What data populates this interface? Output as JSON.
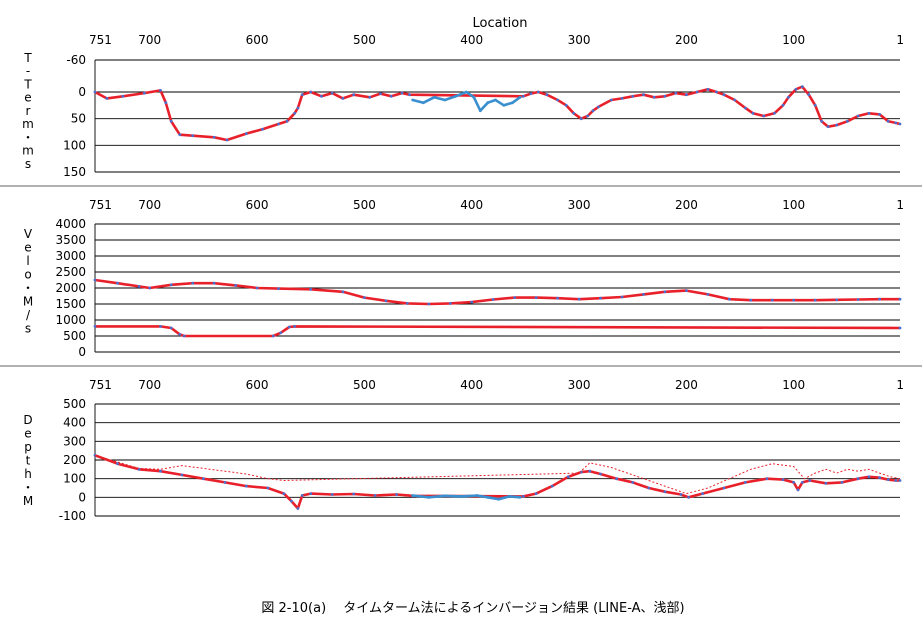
{
  "chart_data": [
    {
      "type": "line",
      "title": "Location",
      "ylabel": "T-Term・ms",
      "ylabel_chars": [
        "T",
        "-",
        "T",
        "e",
        "r",
        "m",
        "・",
        "m",
        "s"
      ],
      "x_ticks": [
        "751",
        "700",
        "600",
        "500",
        "400",
        "300",
        "200",
        "100",
        "1"
      ],
      "x_tick_values": [
        751,
        700,
        600,
        500,
        400,
        300,
        200,
        100,
        1
      ],
      "xlim": [
        751,
        1
      ],
      "y_ticks": [
        "-60",
        "0",
        "50",
        "100",
        "150"
      ],
      "y_tick_values": [
        -60,
        0,
        50,
        100,
        150
      ],
      "ylim": [
        -60,
        150
      ],
      "y_inverted": true,
      "grid": true,
      "series": [
        {
          "color": "#e8202a",
          "x": [
            751,
            740,
            725,
            705,
            690,
            685,
            680,
            672,
            660,
            640,
            628,
            610,
            595,
            580,
            572,
            565,
            562,
            558,
            550,
            540,
            530,
            520,
            510,
            495,
            485,
            475,
            465,
            458,
            352,
            345,
            338,
            330,
            320,
            312,
            305,
            298,
            292,
            287,
            282,
            270,
            260,
            250,
            240,
            230,
            220,
            210,
            200,
            190,
            180,
            172,
            165,
            155,
            145,
            138,
            128,
            118,
            110,
            105,
            98,
            92,
            86,
            80,
            74,
            68,
            60,
            50,
            40,
            30,
            20,
            12,
            5,
            1
          ],
          "y": [
            0,
            12,
            8,
            2,
            -3,
            20,
            55,
            80,
            82,
            85,
            90,
            78,
            70,
            60,
            55,
            40,
            30,
            5,
            0,
            8,
            2,
            12,
            5,
            10,
            3,
            8,
            2,
            5,
            8,
            3,
            0,
            5,
            15,
            25,
            40,
            50,
            45,
            35,
            28,
            15,
            12,
            8,
            5,
            10,
            8,
            2,
            5,
            0,
            -5,
            0,
            5,
            15,
            30,
            40,
            45,
            40,
            25,
            10,
            -5,
            -10,
            5,
            25,
            55,
            65,
            62,
            55,
            45,
            40,
            42,
            55,
            58,
            60
          ]
        },
        {
          "color": "#3a8fd0",
          "x": [
            455,
            445,
            435,
            425,
            415,
            405,
            398,
            392,
            385,
            378,
            370,
            362,
            355
          ],
          "y": [
            15,
            20,
            10,
            15,
            8,
            0,
            10,
            35,
            20,
            15,
            25,
            20,
            10
          ]
        }
      ]
    },
    {
      "type": "line",
      "ylabel": "Velo・M/s",
      "ylabel_chars": [
        "V",
        "e",
        "l",
        "o",
        "・",
        "M",
        "/",
        "s"
      ],
      "x_ticks": [
        "751",
        "700",
        "600",
        "500",
        "400",
        "300",
        "200",
        "100",
        "1"
      ],
      "x_tick_values": [
        751,
        700,
        600,
        500,
        400,
        300,
        200,
        100,
        1
      ],
      "xlim": [
        751,
        1
      ],
      "y_ticks": [
        "4000",
        "3500",
        "3000",
        "2500",
        "2000",
        "1500",
        "1000",
        "500",
        "0"
      ],
      "y_tick_values": [
        4000,
        3500,
        3000,
        2500,
        2000,
        1500,
        1000,
        500,
        0
      ],
      "ylim": [
        0,
        4000
      ],
      "grid": true,
      "series": [
        {
          "color": "#e8202a",
          "x": [
            751,
            730,
            710,
            700,
            680,
            660,
            640,
            620,
            600,
            580,
            550,
            520,
            500,
            480,
            460,
            440,
            420,
            400,
            380,
            360,
            340,
            320,
            300,
            280,
            260,
            240,
            220,
            200,
            180,
            160,
            140,
            120,
            100,
            80,
            60,
            40,
            20,
            1
          ],
          "y": [
            2250,
            2150,
            2050,
            2000,
            2100,
            2150,
            2150,
            2080,
            2000,
            1980,
            1960,
            1880,
            1700,
            1600,
            1520,
            1500,
            1520,
            1560,
            1640,
            1700,
            1700,
            1680,
            1650,
            1680,
            1720,
            1800,
            1880,
            1920,
            1800,
            1650,
            1620,
            1620,
            1620,
            1620,
            1630,
            1640,
            1650,
            1650
          ]
        },
        {
          "color": "#e8202a",
          "x": [
            751,
            690,
            680,
            672,
            668,
            585,
            578,
            570,
            565,
            1
          ],
          "y": [
            800,
            800,
            750,
            550,
            500,
            500,
            600,
            780,
            800,
            750
          ]
        }
      ]
    },
    {
      "type": "line",
      "ylabel": "Depth・M",
      "ylabel_chars": [
        "D",
        "e",
        "p",
        "t",
        "h",
        "・",
        "M"
      ],
      "x_ticks": [
        "751",
        "700",
        "600",
        "500",
        "400",
        "300",
        "200",
        "100",
        "1"
      ],
      "x_tick_values": [
        751,
        700,
        600,
        500,
        400,
        300,
        200,
        100,
        1
      ],
      "xlim": [
        751,
        1
      ],
      "y_ticks": [
        "500",
        "400",
        "300",
        "200",
        "100",
        "0",
        "-100"
      ],
      "y_tick_values": [
        500,
        400,
        300,
        200,
        100,
        0,
        -100
      ],
      "ylim": [
        -100,
        500
      ],
      "grid": true,
      "series": [
        {
          "color": "#e8202a",
          "x": [
            751,
            730,
            710,
            690,
            670,
            650,
            630,
            610,
            590,
            575,
            568,
            562,
            558,
            550,
            530,
            510,
            490,
            470,
            455,
            352,
            340,
            325,
            310,
            298,
            290,
            280,
            265,
            250,
            235,
            220,
            205,
            198,
            185,
            165,
            145,
            125,
            110,
            100,
            96,
            92,
            85,
            70,
            55,
            40,
            30,
            20,
            12,
            5,
            1
          ],
          "y": [
            225,
            180,
            150,
            140,
            120,
            100,
            80,
            60,
            50,
            20,
            -20,
            -60,
            10,
            20,
            15,
            18,
            10,
            15,
            8,
            5,
            20,
            60,
            110,
            135,
            140,
            125,
            100,
            80,
            50,
            30,
            15,
            0,
            20,
            50,
            80,
            100,
            95,
            80,
            40,
            80,
            90,
            75,
            80,
            100,
            110,
            105,
            95,
            90,
            90
          ]
        },
        {
          "color": "#e8202a",
          "dashed": true,
          "x": [
            751,
            710,
            690,
            670,
            650,
            630,
            610,
            590,
            575,
            300,
            290,
            270,
            250,
            230,
            210,
            200,
            180,
            160,
            140,
            120,
            100,
            90,
            80,
            70,
            60,
            50,
            40,
            30,
            20,
            10,
            1
          ],
          "y": [
            225,
            155,
            150,
            170,
            155,
            140,
            125,
            100,
            90,
            130,
            185,
            160,
            120,
            80,
            40,
            20,
            50,
            100,
            150,
            180,
            165,
            100,
            130,
            150,
            130,
            150,
            140,
            150,
            130,
            110,
            100
          ]
        },
        {
          "color": "#3a8fd0",
          "x": [
            455,
            440,
            425,
            410,
            395,
            385,
            375,
            365,
            355
          ],
          "y": [
            10,
            0,
            8,
            5,
            10,
            0,
            -10,
            5,
            0
          ]
        }
      ]
    }
  ],
  "caption": "図 2-10(a)　 タイムターム法によるインバージョン結果 (LINE-A、浅部)"
}
